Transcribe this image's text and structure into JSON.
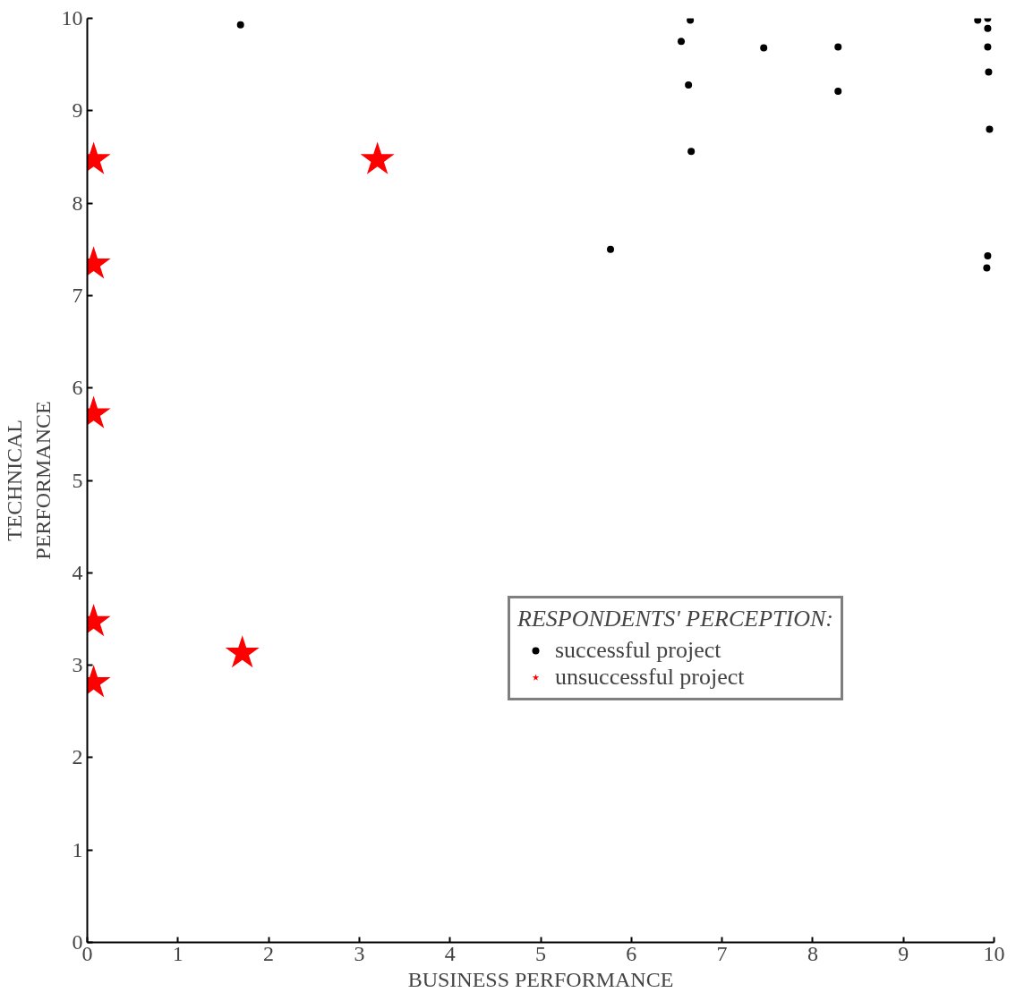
{
  "chart_data": {
    "type": "scatter",
    "xlabel": "BUSINESS PERFORMANCE",
    "ylabel": "TECHNICAL PERFORMANCE",
    "legend_title": "RESPONDENTS' PERCEPTION:",
    "xlim": [
      0,
      10
    ],
    "ylim": [
      0,
      10
    ],
    "xticks": [
      0,
      1,
      2,
      3,
      4,
      5,
      6,
      7,
      8,
      9,
      10
    ],
    "yticks": [
      0,
      1,
      2,
      3,
      4,
      5,
      6,
      7,
      8,
      9,
      10
    ],
    "grid": false,
    "legend": "right",
    "series": [
      {
        "name": "successful project",
        "color": "#000000",
        "marker": "circle",
        "x": [
          1.69,
          5.77,
          6.55,
          6.63,
          6.65,
          6.66,
          7.46,
          8.28,
          8.28,
          9.82,
          9.93,
          9.93,
          9.93,
          9.94,
          9.95,
          9.93,
          9.92
        ],
        "values": [
          9.93,
          7.5,
          9.75,
          9.28,
          9.98,
          8.56,
          9.68,
          9.69,
          9.21,
          9.98,
          10.0,
          9.89,
          9.69,
          9.42,
          8.8,
          7.43,
          7.3
        ]
      },
      {
        "name": "unsuccessful project",
        "color": "#ff0000",
        "marker": "star",
        "x": [
          0.07,
          0.07,
          0.07,
          0.07,
          0.07,
          1.71,
          3.2
        ],
        "values": [
          8.47,
          7.34,
          5.72,
          3.47,
          2.81,
          3.13,
          8.47
        ]
      }
    ]
  }
}
